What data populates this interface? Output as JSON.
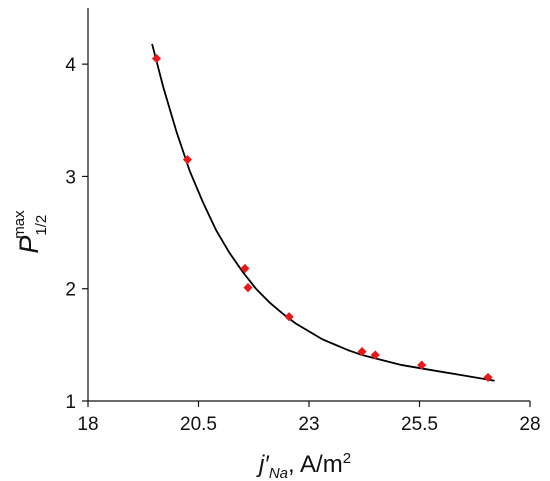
{
  "chart_data": {
    "type": "scatter",
    "title": "",
    "xlabel": {
      "main": "j′",
      "sub": "Na",
      "unit": ", A/m",
      "sup": "2"
    },
    "ylabel": {
      "main": "P",
      "sub": "1/2",
      "sup": "max"
    },
    "xlim": [
      18,
      28
    ],
    "ylim": [
      1,
      4.5
    ],
    "x_ticks": [
      18,
      20.5,
      23,
      25.5,
      28
    ],
    "x_tick_labels": [
      "18",
      "20.5",
      "23",
      "25.5",
      "28"
    ],
    "y_ticks": [
      1,
      2,
      3,
      4
    ],
    "y_tick_labels": [
      "1",
      "2",
      "3",
      "4"
    ],
    "grid": false,
    "legend": "none",
    "series": [
      {
        "marker": "diamond",
        "color": "#e8191c",
        "x": [
          19.55,
          20.25,
          21.55,
          21.62,
          22.55,
          24.2,
          24.5,
          25.55,
          27.05
        ],
        "y": [
          4.05,
          3.15,
          2.18,
          2.01,
          1.75,
          1.44,
          1.41,
          1.32,
          1.21
        ]
      }
    ],
    "fit_curve": {
      "color": "#000000",
      "x": [
        19.45,
        19.7,
        20.0,
        20.3,
        20.6,
        20.9,
        21.2,
        21.5,
        21.8,
        22.1,
        22.4,
        22.7,
        23.0,
        23.3,
        23.6,
        23.9,
        24.2,
        24.5,
        24.8,
        25.1,
        25.4,
        25.7,
        26.0,
        26.3,
        26.6,
        26.9,
        27.2
      ],
      "y": [
        4.18,
        3.8,
        3.4,
        3.05,
        2.77,
        2.52,
        2.32,
        2.15,
        2.0,
        1.88,
        1.78,
        1.69,
        1.62,
        1.55,
        1.5,
        1.45,
        1.41,
        1.38,
        1.35,
        1.32,
        1.3,
        1.28,
        1.26,
        1.24,
        1.22,
        1.2,
        1.18
      ]
    }
  }
}
